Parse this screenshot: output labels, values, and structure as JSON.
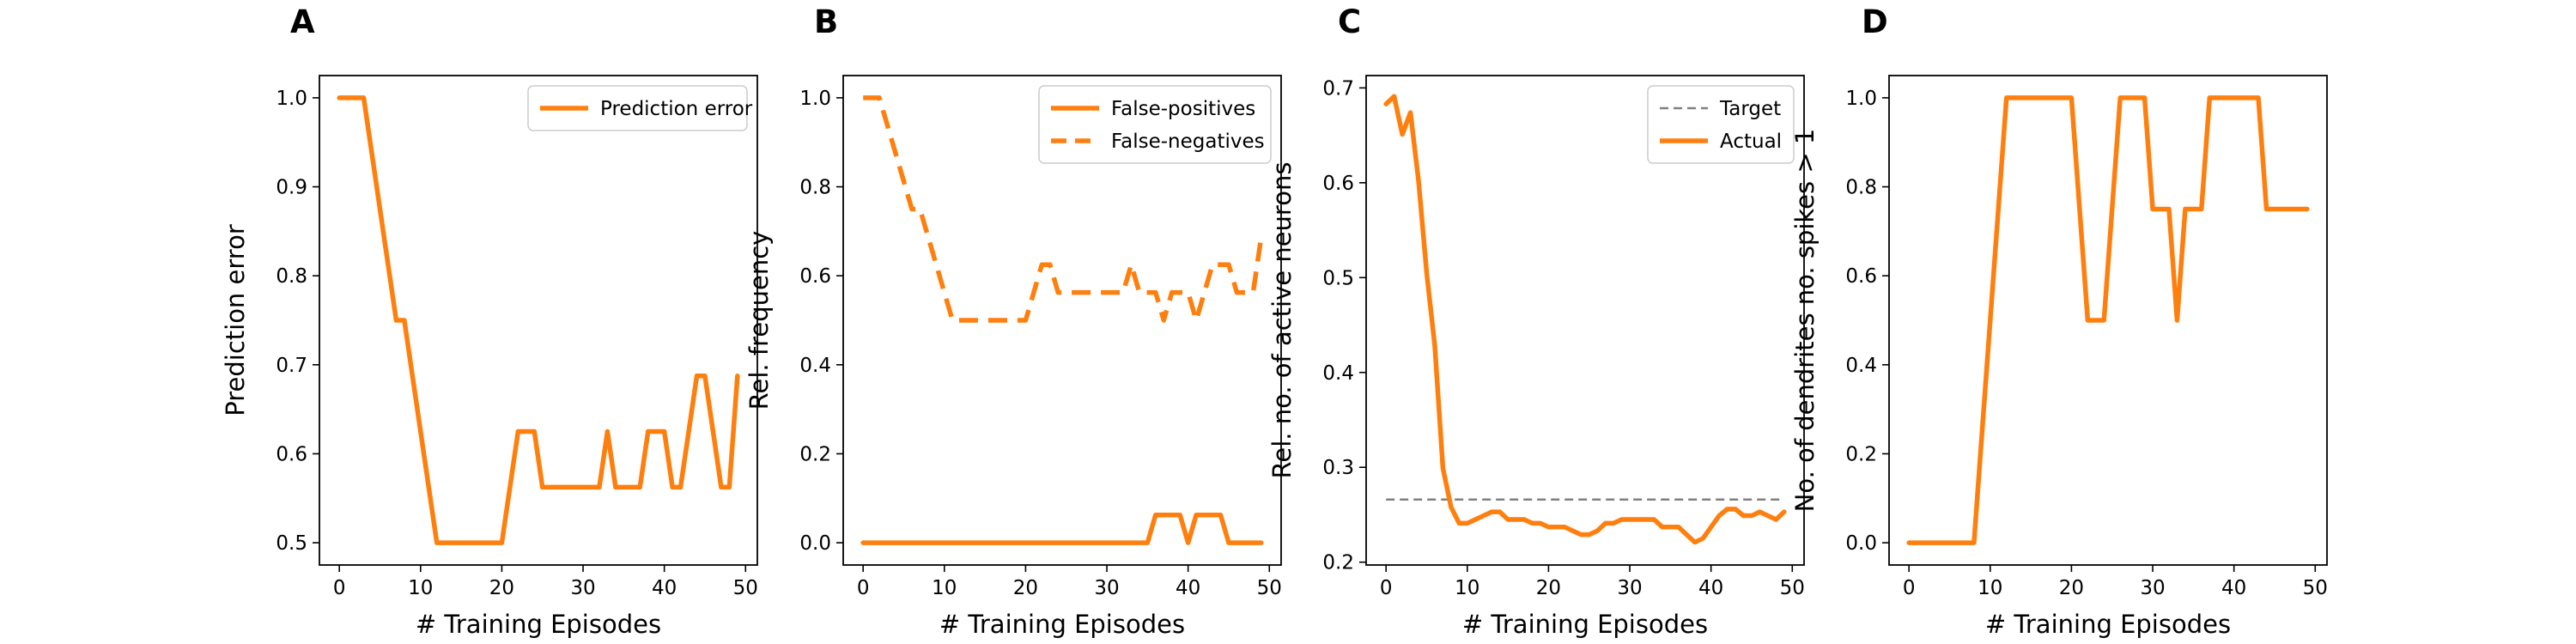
{
  "colors": {
    "series": "#ff7f0e",
    "target": "#808080",
    "axis": "#000000",
    "legend_border": "#cccccc"
  },
  "chart_data": [
    {
      "panel_label": "A",
      "type": "line",
      "xlabel": "# Training Episodes",
      "ylabel": "Prediction error",
      "xlim": [
        -2.45,
        51.45
      ],
      "ylim": [
        0.475,
        1.025
      ],
      "xticks": [
        "0",
        "10",
        "20",
        "30",
        "40",
        "50"
      ],
      "yticks": [
        "0.5",
        "0.6",
        "0.7",
        "0.8",
        "0.9",
        "1.0"
      ],
      "legend_position": "upper right",
      "series": [
        {
          "name": "Prediction error",
          "style": "solid",
          "x": [
            0,
            1,
            2,
            3,
            4,
            5,
            6,
            7,
            8,
            9,
            10,
            11,
            12,
            13,
            14,
            15,
            16,
            17,
            18,
            19,
            20,
            21,
            22,
            23,
            24,
            25,
            26,
            27,
            28,
            29,
            30,
            31,
            32,
            33,
            34,
            35,
            36,
            37,
            38,
            39,
            40,
            41,
            42,
            43,
            44,
            45,
            46,
            47,
            48,
            49
          ],
          "y": [
            1.0,
            1.0,
            1.0,
            1.0,
            0.9375,
            0.875,
            0.8125,
            0.75,
            0.75,
            0.6875,
            0.625,
            0.5625,
            0.5,
            0.5,
            0.5,
            0.5,
            0.5,
            0.5,
            0.5,
            0.5,
            0.5,
            0.5625,
            0.625,
            0.625,
            0.625,
            0.5625,
            0.5625,
            0.5625,
            0.5625,
            0.5625,
            0.5625,
            0.5625,
            0.5625,
            0.625,
            0.5625,
            0.5625,
            0.5625,
            0.5625,
            0.625,
            0.625,
            0.625,
            0.5625,
            0.5625,
            0.625,
            0.6875,
            0.6875,
            0.625,
            0.5625,
            0.5625,
            0.6875
          ]
        }
      ]
    },
    {
      "panel_label": "B",
      "type": "line",
      "xlabel": "# Training Episodes",
      "ylabel": "Rel. frequency",
      "xlim": [
        -2.45,
        51.45
      ],
      "ylim": [
        -0.05,
        1.05
      ],
      "xticks": [
        "0",
        "10",
        "20",
        "30",
        "40",
        "50"
      ],
      "yticks": [
        "0.0",
        "0.2",
        "0.4",
        "0.6",
        "0.8",
        "1.0"
      ],
      "legend_position": "upper right",
      "series": [
        {
          "name": "False-positives",
          "style": "solid",
          "x": [
            0,
            1,
            2,
            3,
            4,
            5,
            6,
            7,
            8,
            9,
            10,
            11,
            12,
            13,
            14,
            15,
            16,
            17,
            18,
            19,
            20,
            21,
            22,
            23,
            24,
            25,
            26,
            27,
            28,
            29,
            30,
            31,
            32,
            33,
            34,
            35,
            36,
            37,
            38,
            39,
            40,
            41,
            42,
            43,
            44,
            45,
            46,
            47,
            48,
            49
          ],
          "y": [
            0,
            0,
            0,
            0,
            0,
            0,
            0,
            0,
            0,
            0,
            0,
            0,
            0,
            0,
            0,
            0,
            0,
            0,
            0,
            0,
            0,
            0,
            0,
            0,
            0,
            0,
            0,
            0,
            0,
            0,
            0,
            0,
            0,
            0,
            0,
            0,
            0.0625,
            0.0625,
            0.0625,
            0.0625,
            0,
            0.0625,
            0.0625,
            0.0625,
            0.0625,
            0,
            0,
            0,
            0,
            0
          ]
        },
        {
          "name": "False-negatives",
          "style": "dashed",
          "x": [
            0,
            1,
            2,
            3,
            4,
            5,
            6,
            7,
            8,
            9,
            10,
            11,
            12,
            13,
            14,
            15,
            16,
            17,
            18,
            19,
            20,
            21,
            22,
            23,
            24,
            25,
            26,
            27,
            28,
            29,
            30,
            31,
            32,
            33,
            34,
            35,
            36,
            37,
            38,
            39,
            40,
            41,
            42,
            43,
            44,
            45,
            46,
            47,
            48,
            49
          ],
          "y": [
            1.0,
            1.0,
            1.0,
            0.9375,
            0.875,
            0.8125,
            0.75,
            0.75,
            0.6875,
            0.625,
            0.5625,
            0.5,
            0.5,
            0.5,
            0.5,
            0.5,
            0.5,
            0.5,
            0.5,
            0.5,
            0.5,
            0.5625,
            0.625,
            0.625,
            0.5625,
            0.5625,
            0.5625,
            0.5625,
            0.5625,
            0.5625,
            0.5625,
            0.5625,
            0.5625,
            0.625,
            0.5625,
            0.5625,
            0.5625,
            0.5,
            0.5625,
            0.5625,
            0.5625,
            0.5,
            0.5625,
            0.625,
            0.625,
            0.625,
            0.5625,
            0.5625,
            0.5625,
            0.6875
          ]
        }
      ]
    },
    {
      "panel_label": "C",
      "type": "line",
      "xlabel": "# Training Episodes",
      "ylabel": "Rel. no. of active neurons",
      "xlim": [
        -2.45,
        51.45
      ],
      "ylim": [
        0.197,
        0.713
      ],
      "xticks": [
        "0",
        "10",
        "20",
        "30",
        "40",
        "50"
      ],
      "yticks": [
        "0.2",
        "0.3",
        "0.4",
        "0.5",
        "0.6",
        "0.7"
      ],
      "legend_position": "upper right",
      "series": [
        {
          "name": "Target",
          "style": "dashed-thin",
          "x": [
            0,
            49
          ],
          "y": [
            0.266,
            0.266
          ]
        },
        {
          "name": "Actual",
          "style": "solid",
          "x": [
            0,
            1,
            2,
            3,
            4,
            5,
            6,
            7,
            8,
            9,
            10,
            11,
            12,
            13,
            14,
            15,
            16,
            17,
            18,
            19,
            20,
            21,
            22,
            23,
            24,
            25,
            26,
            27,
            28,
            29,
            30,
            31,
            32,
            33,
            34,
            35,
            36,
            37,
            38,
            39,
            40,
            41,
            42,
            43,
            44,
            45,
            46,
            47,
            48,
            49
          ],
          "y": [
            0.683,
            0.691,
            0.651,
            0.674,
            0.602,
            0.505,
            0.428,
            0.299,
            0.258,
            0.241,
            0.241,
            0.245,
            0.249,
            0.253,
            0.253,
            0.245,
            0.245,
            0.245,
            0.241,
            0.241,
            0.237,
            0.237,
            0.237,
            0.233,
            0.229,
            0.229,
            0.233,
            0.241,
            0.241,
            0.245,
            0.245,
            0.245,
            0.245,
            0.245,
            0.237,
            0.237,
            0.237,
            0.229,
            0.221,
            0.225,
            0.237,
            0.249,
            0.256,
            0.256,
            0.249,
            0.249,
            0.253,
            0.249,
            0.245,
            0.253
          ]
        }
      ]
    },
    {
      "panel_label": "D",
      "type": "line",
      "xlabel": "# Training Episodes",
      "ylabel": "No. of dendrites no. spikes > 1",
      "xlim": [
        -2.45,
        51.45
      ],
      "ylim": [
        -0.05,
        1.05
      ],
      "xticks": [
        "0",
        "10",
        "20",
        "30",
        "40",
        "50"
      ],
      "yticks": [
        "0.0",
        "0.2",
        "0.4",
        "0.6",
        "0.8",
        "1.0"
      ],
      "legend_position": "",
      "series": [
        {
          "name": "",
          "style": "solid",
          "x": [
            0,
            1,
            2,
            3,
            4,
            5,
            6,
            7,
            8,
            9,
            10,
            11,
            12,
            13,
            14,
            15,
            16,
            17,
            18,
            19,
            20,
            21,
            22,
            23,
            24,
            25,
            26,
            27,
            28,
            29,
            30,
            31,
            32,
            33,
            34,
            35,
            36,
            37,
            38,
            39,
            40,
            41,
            42,
            43,
            44,
            45,
            46,
            47,
            48,
            49
          ],
          "y": [
            0,
            0,
            0,
            0,
            0,
            0,
            0,
            0,
            0,
            0.25,
            0.5,
            0.75,
            1,
            1,
            1,
            1,
            1,
            1,
            1,
            1,
            1,
            0.75,
            0.5,
            0.5,
            0.5,
            0.75,
            1,
            1,
            1,
            1,
            0.75,
            0.75,
            0.75,
            0.5,
            0.75,
            0.75,
            0.75,
            1,
            1,
            1,
            1,
            1,
            1,
            1,
            0.75,
            0.75,
            0.75,
            0.75,
            0.75,
            0.75
          ]
        }
      ]
    }
  ]
}
